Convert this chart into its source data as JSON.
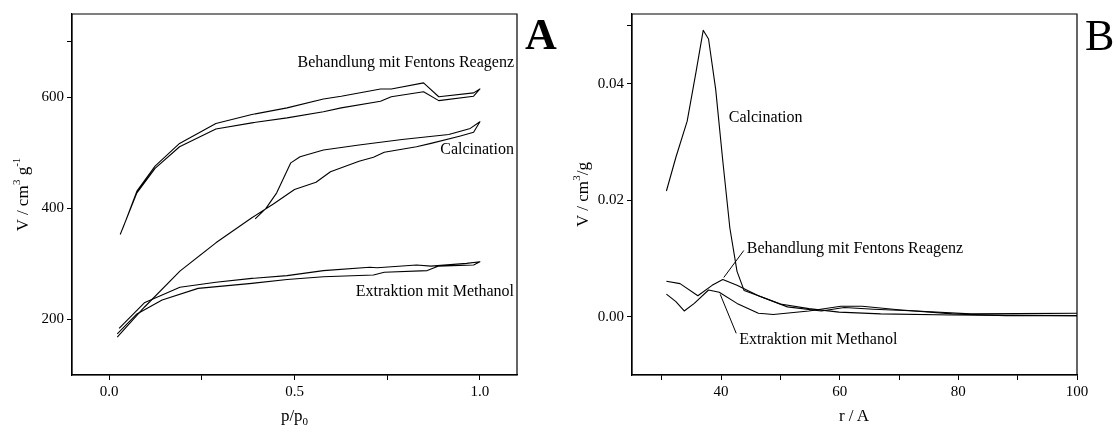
{
  "chart_data": [
    {
      "type": "line",
      "title": "A",
      "xlabel": "p/p$_{0}$",
      "ylabel": "V / cm$^{3}$ g$^{-1}$",
      "marker": "none",
      "xlim": [
        -0.1,
        1.1
      ],
      "xticks": [
        {
          "value": 0,
          "label": "0.0"
        },
        {
          "value": 0.25,
          "label": null
        },
        0.5,
        {
          "value": 0.75,
          "label": null
        },
        {
          "value": 1,
          "label": "1.0"
        }
      ],
      "ylim": [
        100,
        750
      ],
      "yticks": [
        200,
        400,
        600,
        {
          "value": 700,
          "label": null
        }
      ],
      "series": [
        {
          "name": "Behandlung mit Fentons Reagenz",
          "color": "#000000",
          "x": [
            0.03,
            0.075,
            0.124,
            0.19,
            0.288,
            0.385,
            0.48,
            0.578,
            0.626,
            0.732,
            0.761,
            0.848,
            0.889,
            0.983,
            1.0,
            0.983,
            0.889,
            0.848,
            0.761,
            0.732,
            0.626,
            0.578,
            0.48,
            0.385,
            0.288,
            0.19,
            0.124,
            0.075,
            0.037
          ],
          "values": [
            353,
            428,
            472,
            511,
            543,
            554,
            563,
            574,
            581,
            593,
            601,
            610,
            594,
            602,
            615,
            608,
            601,
            626,
            615,
            615,
            602,
            597,
            581,
            569,
            553,
            517,
            476,
            431,
            364
          ]
        },
        {
          "name": "Calcination",
          "color": "#000000",
          "x": [
            0.022,
            0.095,
            0.191,
            0.288,
            0.385,
            0.443,
            0.5,
            0.558,
            0.597,
            0.674,
            0.713,
            0.742,
            0.829,
            0.868,
            0.945,
            0.983,
            1.0,
            0.974,
            0.916,
            0.79,
            0.674,
            0.578,
            0.515,
            0.49,
            0.452,
            0.423,
            0.394
          ],
          "values": [
            168,
            222,
            287,
            338,
            383,
            408,
            434,
            447,
            466,
            485,
            492,
            501,
            511,
            517,
            530,
            537,
            556,
            544,
            533,
            524,
            514,
            505,
            493,
            482,
            428,
            400,
            381
          ]
        },
        {
          "name": "Extraktion mit Methanol",
          "color": "#000000",
          "x": [
            0.022,
            0.075,
            0.143,
            0.24,
            0.385,
            0.48,
            0.578,
            0.713,
            0.742,
            0.858,
            0.887,
            0.983,
            1.0,
            0.964,
            0.868,
            0.829,
            0.723,
            0.703,
            0.578,
            0.48,
            0.385,
            0.288,
            0.191,
            0.095,
            0.027
          ],
          "values": [
            174,
            210,
            235,
            256,
            265,
            272,
            277,
            280,
            285,
            288,
            296,
            298,
            304,
            301,
            296,
            298,
            293,
            294,
            288,
            279,
            274,
            267,
            258,
            230,
            184
          ]
        }
      ]
    },
    {
      "type": "line",
      "title": "B",
      "xlabel": "r / A",
      "ylabel": "V / cm$^{3}$/g",
      "marker": "none",
      "xlim": [
        25,
        100
      ],
      "xticks": [
        {
          "value": 30,
          "label": null
        },
        40,
        {
          "value": 50,
          "label": null
        },
        60,
        {
          "value": 70,
          "label": null
        },
        80,
        {
          "value": 90,
          "label": null
        },
        100
      ],
      "ylim": [
        -0.01,
        0.052
      ],
      "yticks": [
        {
          "value": 0,
          "label": "0.00"
        },
        0.02,
        0.04,
        {
          "value": 0.05,
          "label": null
        }
      ],
      "series": [
        {
          "name": "Calcination",
          "color": "#000000",
          "x": [
            30.8,
            32.4,
            34.3,
            35.8,
            37.0,
            37.9,
            39.1,
            40.3,
            41.5,
            42.7,
            43.9,
            46.3,
            50.0,
            54.8,
            59.9,
            66.9,
            79.0,
            100
          ],
          "values": [
            0.0216,
            0.0274,
            0.0336,
            0.0421,
            0.0492,
            0.0477,
            0.0391,
            0.0268,
            0.0152,
            0.0078,
            0.0045,
            0.0036,
            0.0022,
            0.0014,
            0.0008,
            0.0005,
            0.0003,
            0.0002
          ]
        },
        {
          "name": "Behandlung mit Fentons Reagenz",
          "color": "#000000",
          "x": [
            30.8,
            33.1,
            36.1,
            38.5,
            40.3,
            42.7,
            46.3,
            51.2,
            56.9,
            60.8,
            65.7,
            72.9,
            82.0,
            100
          ],
          "values": [
            0.0061,
            0.0057,
            0.0036,
            0.0054,
            0.0064,
            0.0054,
            0.0036,
            0.0017,
            0.001,
            0.0016,
            0.0013,
            0.001,
            0.0005,
            0.0006
          ]
        },
        {
          "name": "Extraktion mit Methanol",
          "color": "#000000",
          "x": [
            30.8,
            32.4,
            33.8,
            35.5,
            37.9,
            39.7,
            42.7,
            46.3,
            48.8,
            54.8,
            60.2,
            63.8,
            69.9,
            79.0,
            88.0,
            100
          ],
          "values": [
            0.0039,
            0.0026,
            0.001,
            0.0023,
            0.0046,
            0.0042,
            0.0023,
            0.0006,
            0.0004,
            0.001,
            0.0018,
            0.0018,
            0.0012,
            0.0005,
            0.0002,
            0.0002
          ]
        }
      ]
    }
  ]
}
